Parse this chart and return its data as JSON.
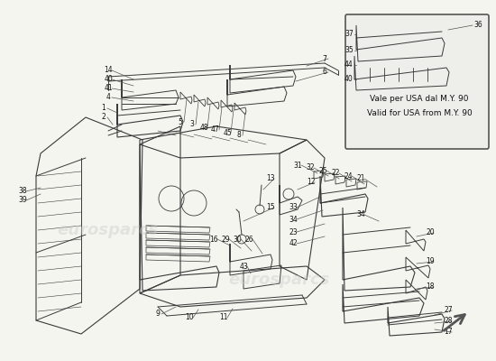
{
  "bg_color": "#f5f5f0",
  "line_color": "#3a3a3a",
  "label_color": "#111111",
  "watermark_color": "#cccccc",
  "inset_text1": "Vale per USA dal M.Y. 90",
  "inset_text2": "Valid for USA from M.Y. 90",
  "watermark1": "eurosparcs",
  "watermark2": "eurosparcs"
}
